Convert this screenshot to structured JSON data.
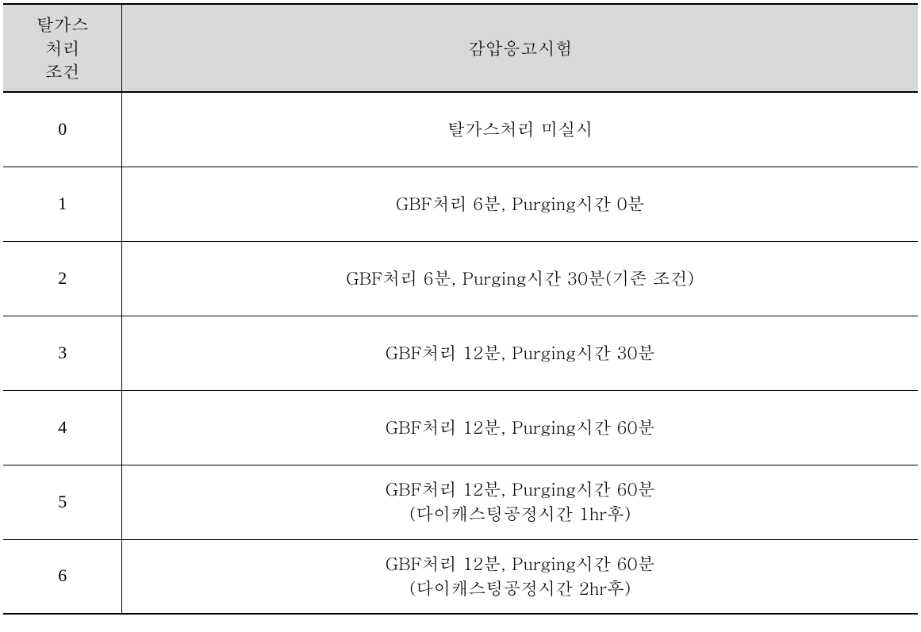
{
  "table": {
    "type": "table",
    "background_color": "#ffffff",
    "header_bg_color": "#d9d9d9",
    "border_color": "#000000",
    "outer_border_width": 2,
    "inner_border_width": 1,
    "font_size_pt": 16,
    "font_family": "Batang, Times New Roman, serif",
    "column_widths_pct": [
      13,
      87
    ],
    "columns": [
      "탈가스\n처리\n조건",
      "감압응고시험"
    ],
    "rows": [
      {
        "condition": "0",
        "description": [
          "탈가스처리 미실시"
        ]
      },
      {
        "condition": "1",
        "description": [
          "GBF처리 6분, Purging시간 0분"
        ]
      },
      {
        "condition": "2",
        "description": [
          "GBF처리 6분, Purging시간 30분(기존 조건)"
        ]
      },
      {
        "condition": "3",
        "description": [
          "GBF처리 12분, Purging시간 30분"
        ]
      },
      {
        "condition": "4",
        "description": [
          "GBF처리 12분, Purging시간 60분"
        ]
      },
      {
        "condition": "5",
        "description": [
          "GBF처리 12분, Purging시간 60분",
          "(다이캐스팅공정시간 1hr후)"
        ]
      },
      {
        "condition": "6",
        "description": [
          "GBF처리 12분, Purging시간 60분",
          "(다이캐스팅공정시간 2hr후)"
        ]
      }
    ]
  }
}
